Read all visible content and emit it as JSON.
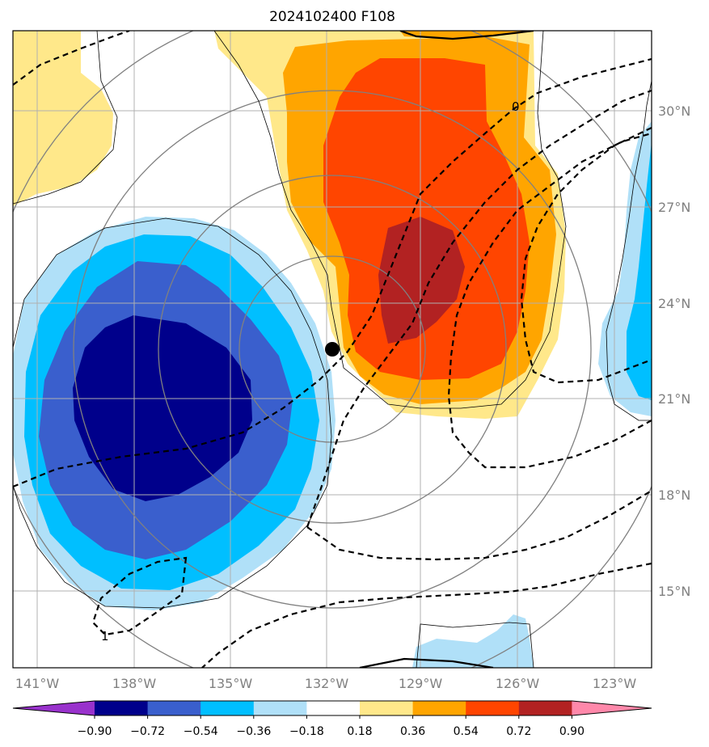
{
  "chart_data": {
    "type": "contour map",
    "title": "2024102400 F108",
    "projection": "regional map",
    "xlim_lon": [
      -142,
      -121.4
    ],
    "ylim_lat": [
      12.5,
      32.5
    ],
    "x_ticks": [
      "141°W",
      "138°W",
      "135°W",
      "132°W",
      "129°W",
      "126°W",
      "123°W"
    ],
    "y_ticks": [
      "30°N",
      "27°N",
      "24°N",
      "21°N",
      "18°N",
      "15°N"
    ],
    "grid": true,
    "colorbar": {
      "orientation": "horizontal",
      "extend": "both",
      "tick_labels": [
        "−0.90",
        "−0.72",
        "−0.54",
        "−0.36",
        "−0.18",
        "0.18",
        "0.36",
        "0.54",
        "0.72",
        "0.90"
      ],
      "bounds": [
        -0.9,
        -0.72,
        -0.54,
        -0.36,
        -0.18,
        0.18,
        0.36,
        0.54,
        0.72,
        0.9
      ],
      "colors": [
        "#9932cc",
        "#00008b",
        "#3a5fcd",
        "#00bfff",
        "#b0e0f8",
        "#ffffff",
        "#ffe88a",
        "#ffa500",
        "#ff4500",
        "#b22222",
        "#ff88aa"
      ]
    },
    "filled_features": [
      {
        "name": "negative anomaly",
        "center_lon": -136.5,
        "center_lat": 21.0,
        "min_level": "−0.90 to −0.72"
      },
      {
        "name": "positive anomaly",
        "center_lon": -128.5,
        "center_lat": 25.0,
        "max_level": "0.72 to 0.90"
      }
    ],
    "contour_labels": [
      "0",
      "1"
    ],
    "marker": {
      "lon": -131.8,
      "lat": 22.6,
      "shape": "filled circle",
      "color": "#000000"
    }
  }
}
